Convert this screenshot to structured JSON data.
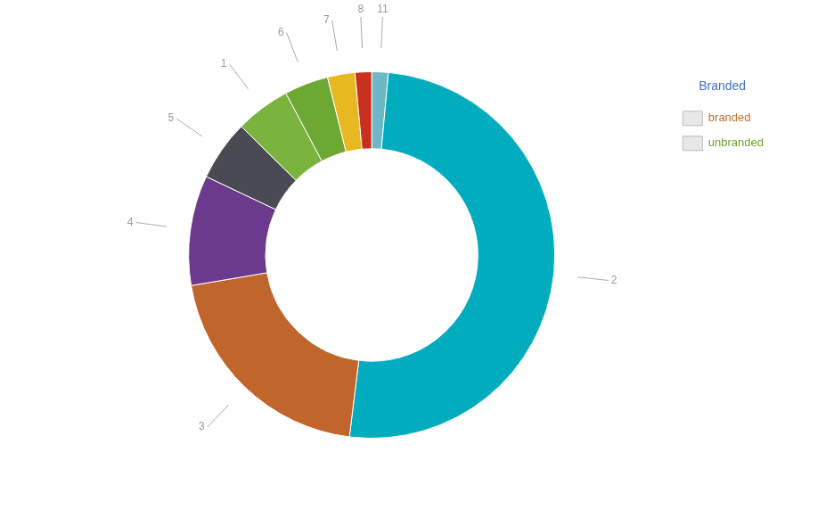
{
  "chart_data": {
    "type": "pie",
    "title": "Branded",
    "categories": [
      "11",
      "2",
      "3",
      "4",
      "5",
      "1",
      "6",
      "7",
      "8"
    ],
    "values": [
      1.5,
      52,
      21,
      10,
      5.5,
      5,
      4,
      2.5,
      1.5
    ],
    "colors": [
      "#6db8c5",
      "#00acbe",
      "#c0652b",
      "#6b3a8c",
      "#4a4a54",
      "#7ab33e",
      "#6ca832",
      "#e8b820",
      "#c83020"
    ],
    "series": [
      {
        "name": "branded",
        "color": "#c07030"
      },
      {
        "name": "unbranded",
        "color": "#70a030"
      }
    ],
    "legend": "upper right"
  }
}
